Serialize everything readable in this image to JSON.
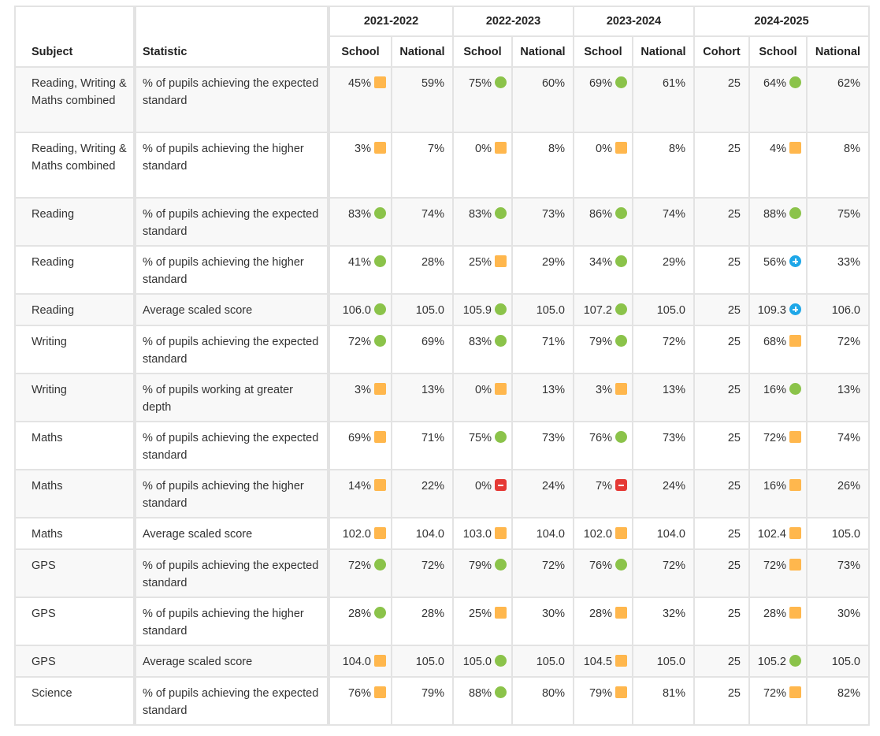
{
  "headers": {
    "subject": "Subject",
    "statistic": "Statistic",
    "groups": [
      "2021-2022",
      "2022-2023",
      "2023-2024",
      "2024-2025"
    ],
    "school": "School",
    "national": "National",
    "cohort": "Cohort"
  },
  "indicator_colors": {
    "square": "#ffb74d",
    "circle": "#8bc34a",
    "plus": "#1ea7e8",
    "minus": "#e53935"
  },
  "rows": [
    {
      "subject": "Reading, Writing & Maths combined",
      "statistic": "% of pupils achieving the expected standard",
      "y1": {
        "school": "45%",
        "ind": "square",
        "national": "59%"
      },
      "y2": {
        "school": "75%",
        "ind": "circle",
        "national": "60%"
      },
      "y3": {
        "school": "69%",
        "ind": "circle",
        "national": "61%"
      },
      "y4": {
        "cohort": "25",
        "school": "64%",
        "ind": "circle",
        "national": "62%"
      }
    },
    {
      "subject": "Reading, Writing & Maths combined",
      "statistic": "% of pupils achieving the higher standard",
      "y1": {
        "school": "3%",
        "ind": "square",
        "national": "7%"
      },
      "y2": {
        "school": "0%",
        "ind": "square",
        "national": "8%"
      },
      "y3": {
        "school": "0%",
        "ind": "square",
        "national": "8%"
      },
      "y4": {
        "cohort": "25",
        "school": "4%",
        "ind": "square",
        "national": "8%"
      }
    },
    {
      "subject": "Reading",
      "statistic": "% of pupils achieving the expected standard",
      "y1": {
        "school": "83%",
        "ind": "circle",
        "national": "74%"
      },
      "y2": {
        "school": "83%",
        "ind": "circle",
        "national": "73%"
      },
      "y3": {
        "school": "86%",
        "ind": "circle",
        "national": "74%"
      },
      "y4": {
        "cohort": "25",
        "school": "88%",
        "ind": "circle",
        "national": "75%"
      }
    },
    {
      "subject": "Reading",
      "statistic": "% of pupils achieving the higher standard",
      "y1": {
        "school": "41%",
        "ind": "circle",
        "national": "28%"
      },
      "y2": {
        "school": "25%",
        "ind": "square",
        "national": "29%"
      },
      "y3": {
        "school": "34%",
        "ind": "circle",
        "national": "29%"
      },
      "y4": {
        "cohort": "25",
        "school": "56%",
        "ind": "plus",
        "national": "33%"
      }
    },
    {
      "subject": "Reading",
      "statistic": "Average scaled score",
      "y1": {
        "school": "106.0",
        "ind": "circle",
        "national": "105.0"
      },
      "y2": {
        "school": "105.9",
        "ind": "circle",
        "national": "105.0"
      },
      "y3": {
        "school": "107.2",
        "ind": "circle",
        "national": "105.0"
      },
      "y4": {
        "cohort": "25",
        "school": "109.3",
        "ind": "plus",
        "national": "106.0"
      }
    },
    {
      "subject": "Writing",
      "statistic": "% of pupils achieving the expected standard",
      "y1": {
        "school": "72%",
        "ind": "circle",
        "national": "69%"
      },
      "y2": {
        "school": "83%",
        "ind": "circle",
        "national": "71%"
      },
      "y3": {
        "school": "79%",
        "ind": "circle",
        "national": "72%"
      },
      "y4": {
        "cohort": "25",
        "school": "68%",
        "ind": "square",
        "national": "72%"
      }
    },
    {
      "subject": "Writing",
      "statistic": "% of pupils working at greater depth",
      "y1": {
        "school": "3%",
        "ind": "square",
        "national": "13%"
      },
      "y2": {
        "school": "0%",
        "ind": "square",
        "national": "13%"
      },
      "y3": {
        "school": "3%",
        "ind": "square",
        "national": "13%"
      },
      "y4": {
        "cohort": "25",
        "school": "16%",
        "ind": "circle",
        "national": "13%"
      }
    },
    {
      "subject": "Maths",
      "statistic": "% of pupils achieving the expected standard",
      "y1": {
        "school": "69%",
        "ind": "square",
        "national": "71%"
      },
      "y2": {
        "school": "75%",
        "ind": "circle",
        "national": "73%"
      },
      "y3": {
        "school": "76%",
        "ind": "circle",
        "national": "73%"
      },
      "y4": {
        "cohort": "25",
        "school": "72%",
        "ind": "square",
        "national": "74%"
      }
    },
    {
      "subject": "Maths",
      "statistic": "% of pupils achieving the higher standard",
      "y1": {
        "school": "14%",
        "ind": "square",
        "national": "22%"
      },
      "y2": {
        "school": "0%",
        "ind": "minus",
        "national": "24%"
      },
      "y3": {
        "school": "7%",
        "ind": "minus",
        "national": "24%"
      },
      "y4": {
        "cohort": "25",
        "school": "16%",
        "ind": "square",
        "national": "26%"
      }
    },
    {
      "subject": "Maths",
      "statistic": "Average scaled score",
      "y1": {
        "school": "102.0",
        "ind": "square",
        "national": "104.0"
      },
      "y2": {
        "school": "103.0",
        "ind": "square",
        "national": "104.0"
      },
      "y3": {
        "school": "102.0",
        "ind": "square",
        "national": "104.0"
      },
      "y4": {
        "cohort": "25",
        "school": "102.4",
        "ind": "square",
        "national": "105.0"
      }
    },
    {
      "subject": "GPS",
      "statistic": "% of pupils achieving the expected standard",
      "y1": {
        "school": "72%",
        "ind": "circle",
        "national": "72%"
      },
      "y2": {
        "school": "79%",
        "ind": "circle",
        "national": "72%"
      },
      "y3": {
        "school": "76%",
        "ind": "circle",
        "national": "72%"
      },
      "y4": {
        "cohort": "25",
        "school": "72%",
        "ind": "square",
        "national": "73%"
      }
    },
    {
      "subject": "GPS",
      "statistic": "% of pupils achieving the higher standard",
      "y1": {
        "school": "28%",
        "ind": "circle",
        "national": "28%"
      },
      "y2": {
        "school": "25%",
        "ind": "square",
        "national": "30%"
      },
      "y3": {
        "school": "28%",
        "ind": "square",
        "national": "32%"
      },
      "y4": {
        "cohort": "25",
        "school": "28%",
        "ind": "square",
        "national": "30%"
      }
    },
    {
      "subject": "GPS",
      "statistic": "Average scaled score",
      "y1": {
        "school": "104.0",
        "ind": "square",
        "national": "105.0"
      },
      "y2": {
        "school": "105.0",
        "ind": "circle",
        "national": "105.0"
      },
      "y3": {
        "school": "104.5",
        "ind": "square",
        "national": "105.0"
      },
      "y4": {
        "cohort": "25",
        "school": "105.2",
        "ind": "circle",
        "national": "105.0"
      }
    },
    {
      "subject": "Science",
      "statistic": "% of pupils achieving the expected standard",
      "y1": {
        "school": "76%",
        "ind": "square",
        "national": "79%"
      },
      "y2": {
        "school": "88%",
        "ind": "circle",
        "national": "80%"
      },
      "y3": {
        "school": "79%",
        "ind": "square",
        "national": "81%"
      },
      "y4": {
        "cohort": "25",
        "school": "72%",
        "ind": "square",
        "national": "82%"
      }
    }
  ]
}
